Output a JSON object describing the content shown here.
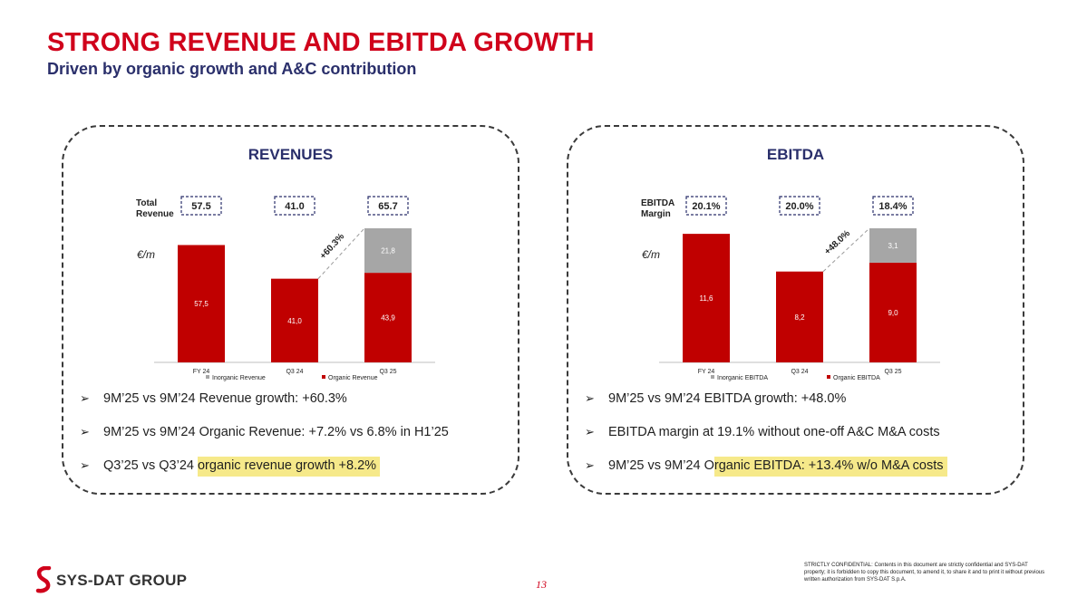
{
  "header": {
    "title": "STRONG REVENUE AND EBITDA GROWTH",
    "subtitle": "Driven by organic growth and A&C contribution"
  },
  "panels": [
    {
      "title": "REVENUES",
      "bullets": [
        {
          "pre": "9M’25 vs 9M’24 Revenue growth: +60.3%",
          "hl": ""
        },
        {
          "pre": "9M’25 vs 9M’24 Organic Revenue: +7.2% vs 6.8% in H1’25",
          "hl": ""
        },
        {
          "pre": "Q3’25 vs Q3’24 ",
          "hl": "organic revenue growth +8.2%"
        }
      ]
    },
    {
      "title": "EBITDA",
      "bullets": [
        {
          "pre": "9M’25 vs 9M’24 EBITDA growth: +48.0%",
          "hl": ""
        },
        {
          "pre": "EBITDA margin at 19.1% without one-off A&C M&A costs",
          "hl": ""
        },
        {
          "pre": "9M’25 vs 9M’24 O",
          "hl": "rganic EBITDA: +13.4% w/o M&A costs"
        }
      ]
    }
  ],
  "chart_data": [
    {
      "type": "bar",
      "stacked": true,
      "categories": [
        "FY 24",
        "Q3 24",
        "Q3 25"
      ],
      "series": [
        {
          "name": "Organic Revenue",
          "values": [
            57.5,
            41.0,
            43.9
          ],
          "labels": [
            "57,5",
            "41,0",
            "43,9"
          ],
          "color": "#c00000"
        },
        {
          "name": "Inorganic Revenue",
          "values": [
            0,
            0,
            21.8
          ],
          "labels": [
            "",
            "",
            "21,8"
          ],
          "color": "#a6a6a6"
        }
      ],
      "unit_label": "€/m",
      "summary_label": "Total Revenue",
      "summary_values": [
        "57.5",
        "41.0",
        "65.7"
      ],
      "growth_annotation": "+60.3%",
      "ylim": [
        0,
        65.7
      ]
    },
    {
      "type": "bar",
      "stacked": true,
      "categories": [
        "FY 24",
        "Q3 24",
        "Q3 25"
      ],
      "series": [
        {
          "name": "Organic EBITDA",
          "values": [
            11.6,
            8.2,
            9.0
          ],
          "labels": [
            "11,6",
            "8,2",
            "9,0"
          ],
          "color": "#c00000"
        },
        {
          "name": "Inorganic EBITDA",
          "values": [
            0,
            0,
            3.1
          ],
          "labels": [
            "",
            "",
            "3,1"
          ],
          "color": "#a6a6a6"
        }
      ],
      "unit_label": "€/m",
      "summary_label": "EBITDA Margin",
      "summary_values": [
        "20.1%",
        "20.0%",
        "18.4%"
      ],
      "growth_annotation": "+48.0%",
      "ylim": [
        0,
        12.1
      ]
    }
  ],
  "footer": {
    "logo_text": "SYS-DAT GROUP",
    "page_number": "13",
    "disclaimer": "STRICTLY CONFIDENTIAL: Contents in this document are strictly confidential and SYS-DAT property; it is forbidden to copy this document, to amend it, to share it and to print it without previous written authorization from SYS-DAT S.p.A."
  }
}
